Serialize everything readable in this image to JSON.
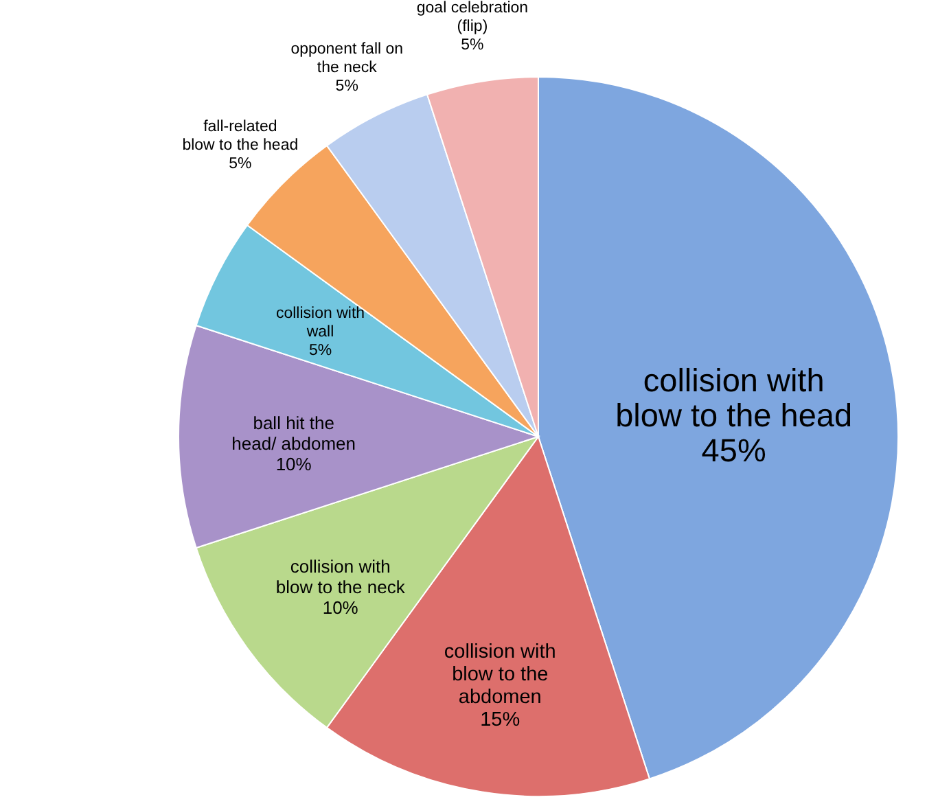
{
  "chart_data": {
    "type": "pie",
    "categories": [
      "collision with blow to the head",
      "collision with blow to the abdomen",
      "collision with blow to the neck",
      "ball hit the head/ abdomen",
      "collision with wall",
      "fall-related blow to the head",
      "opponent fall on the neck",
      "goal celebration (flip)"
    ],
    "values": [
      45,
      15,
      10,
      10,
      5,
      5,
      5,
      5
    ],
    "value_labels": [
      "45%",
      "15%",
      "10%",
      "10%",
      "5%",
      "5%",
      "5%",
      "5%"
    ],
    "colors": [
      "#7ea6df",
      "#dd6f6c",
      "#b9d98c",
      "#a892c9",
      "#72c6df",
      "#f6a45d",
      "#b9cdef",
      "#f1b1b0"
    ]
  }
}
